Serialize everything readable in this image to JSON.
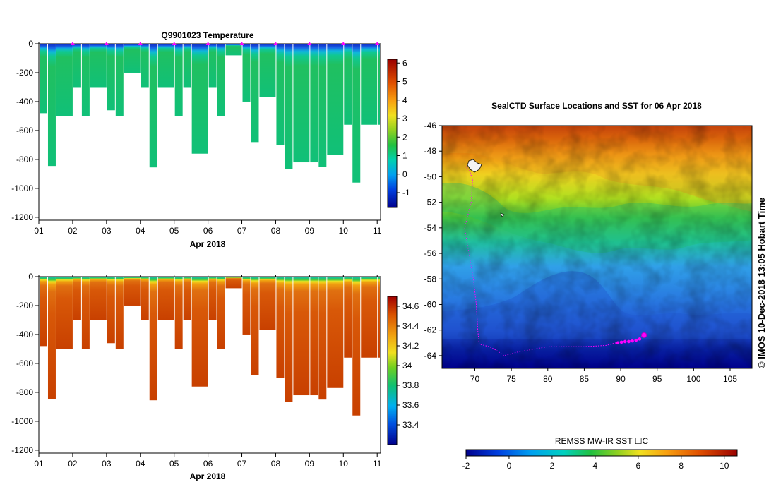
{
  "chart_data": [
    {
      "type": "heatmap",
      "id": "temperature_section",
      "title": "Q9901023  Temperature",
      "xlabel": "Apr 2018",
      "ylabel": "",
      "x_ticks": [
        "01",
        "02",
        "03",
        "04",
        "05",
        "06",
        "07",
        "08",
        "09",
        "10",
        "11"
      ],
      "y_ticks": [
        0,
        -200,
        -400,
        -600,
        -800,
        -1000,
        -1200
      ],
      "ylim": [
        -1220,
        0
      ],
      "xlim": [
        1.0,
        11.1
      ],
      "colorbar": {
        "ticks": [
          -1,
          0,
          1,
          2,
          3,
          4,
          5,
          6
        ],
        "range": [
          -1.8,
          6.2
        ]
      },
      "profile_start_days": [
        1.0,
        1.25,
        1.5,
        2.0,
        2.25,
        2.5,
        3.0,
        3.25,
        3.5,
        4.0,
        4.25,
        4.5,
        5.0,
        5.25,
        5.5,
        6.0,
        6.25,
        6.5,
        7.0,
        7.25,
        7.5,
        8.0,
        8.25,
        8.5,
        9.0,
        9.25,
        9.5,
        10.0,
        10.25,
        10.5,
        11.0
      ],
      "profile_max_depths": [
        480,
        845,
        500,
        300,
        500,
        300,
        460,
        500,
        200,
        300,
        855,
        300,
        500,
        300,
        760,
        300,
        500,
        80,
        400,
        680,
        370,
        700,
        865,
        820,
        820,
        850,
        770,
        560,
        960,
        560,
        560
      ],
      "surface_markers_days": [
        2,
        3,
        4,
        5,
        6,
        7,
        8,
        9,
        10,
        11
      ]
    },
    {
      "type": "heatmap",
      "id": "salinity_section",
      "title": "",
      "xlabel": "Apr 2018",
      "ylabel": "",
      "x_ticks": [
        "01",
        "02",
        "03",
        "04",
        "05",
        "06",
        "07",
        "08",
        "09",
        "10",
        "11"
      ],
      "y_ticks": [
        0,
        -200,
        -400,
        -600,
        -800,
        -1000,
        -1200
      ],
      "ylim": [
        -1220,
        0
      ],
      "xlim": [
        1.0,
        11.1
      ],
      "colorbar": {
        "ticks": [
          33.4,
          33.6,
          33.8,
          34,
          34.2,
          34.4,
          34.6
        ],
        "range": [
          33.2,
          34.7
        ]
      }
    },
    {
      "type": "heatmap",
      "id": "sst_map",
      "title": "SealCTD Surface Locations and SST for 06 Apr 2018",
      "x_ticks": [
        70,
        75,
        80,
        85,
        90,
        95,
        100,
        105
      ],
      "y_ticks": [
        -46,
        -48,
        -50,
        -52,
        -54,
        -56,
        -58,
        -60,
        -62,
        -64
      ],
      "xlim": [
        65.5,
        108
      ],
      "ylim": [
        -65,
        -46
      ],
      "track_lonlat": [
        [
          68.8,
          -49.2
        ],
        [
          69.3,
          -49.6
        ],
        [
          69.7,
          -50.2
        ],
        [
          69.5,
          -52
        ],
        [
          68.6,
          -54
        ],
        [
          69.2,
          -56
        ],
        [
          69.8,
          -58
        ],
        [
          70.2,
          -60
        ],
        [
          70.4,
          -62
        ],
        [
          70.6,
          -63.1
        ],
        [
          72,
          -63.3
        ],
        [
          73,
          -63.6
        ],
        [
          74,
          -64.0
        ],
        [
          76,
          -63.7
        ],
        [
          80,
          -63.3
        ],
        [
          85,
          -63.3
        ],
        [
          88,
          -63.2
        ],
        [
          90,
          -62.9
        ],
        [
          92,
          -62.8
        ],
        [
          93.2,
          -62.4
        ]
      ],
      "track_points_lonlat": [
        [
          89.6,
          -63.0
        ],
        [
          90.1,
          -62.95
        ],
        [
          90.6,
          -62.9
        ],
        [
          91.1,
          -62.9
        ],
        [
          91.6,
          -62.85
        ],
        [
          92.1,
          -62.8
        ],
        [
          92.6,
          -62.7
        ]
      ],
      "last_position_lonlat": [
        93.2,
        -62.4
      ],
      "colorbar": {
        "label": "REMSS MW-IR SST ☐C",
        "ticks": [
          -2,
          0,
          2,
          4,
          6,
          8,
          10
        ],
        "range": [
          -2,
          10.6
        ]
      }
    }
  ],
  "credit": "©  IMOS 10-Dec-2018 13:05 Hobart Time"
}
